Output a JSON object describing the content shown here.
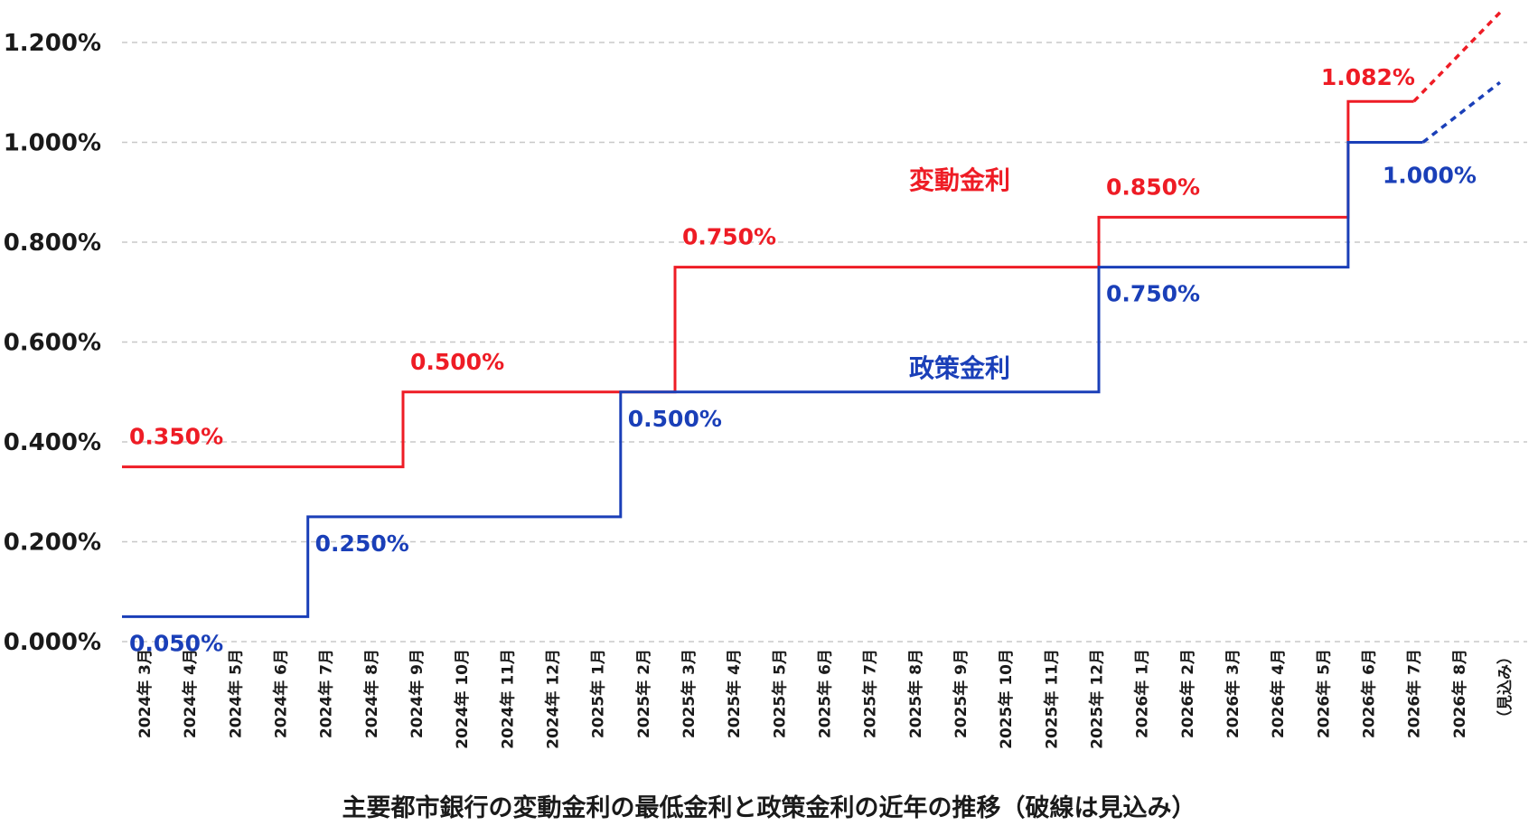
{
  "chart_data": {
    "type": "line",
    "title": "主要都市銀行の変動金利の最低金利と政策金利の近年の推移（破線は見込み）",
    "x": [
      "2024年 3月",
      "2024年 4月",
      "2024年 5月",
      "2024年 6月",
      "2024年 7月",
      "2024年 8月",
      "2024年 9月",
      "2024年 10月",
      "2024年 11月",
      "2024年 12月",
      "2025年 1月",
      "2025年 2月",
      "2025年 3月",
      "2025年 4月",
      "2025年 5月",
      "2025年 6月",
      "2025年 7月",
      "2025年 8月",
      "2025年 9月",
      "2025年 10月",
      "2025年 11月",
      "2025年 12月",
      "2026年 1月",
      "2026年 2月",
      "2026年 3月",
      "2026年 4月",
      "2026年 5月",
      "2026年 6月",
      "2026年 7月",
      "2026年 8月",
      "（見込み）"
    ],
    "yticks": [
      "0.000%",
      "0.200%",
      "0.400%",
      "0.600%",
      "0.800%",
      "1.000%",
      "1.200%"
    ],
    "ylim": [
      0,
      1.2
    ],
    "grid": true,
    "line_style": "step",
    "series": [
      {
        "name": "変動金利",
        "color": "#ee1c25",
        "steps": [
          {
            "start": 0,
            "end": 6.2,
            "value": 0.35,
            "label": "0.350%"
          },
          {
            "start": 6.2,
            "end": 12.2,
            "value": 0.5,
            "label": "0.500%"
          },
          {
            "start": 12.2,
            "end": 21.55,
            "value": 0.75,
            "label": "0.750%"
          },
          {
            "start": 21.55,
            "end": 27.05,
            "value": 0.85,
            "label": "0.850%"
          },
          {
            "start": 27.05,
            "end": 28.5,
            "value": 1.082,
            "label": "1.082%"
          }
        ],
        "projection": {
          "from": [
            28.5,
            1.082
          ],
          "to": [
            30.4,
            1.26
          ]
        }
      },
      {
        "name": "政策金利",
        "color": "#1a3fb8",
        "steps": [
          {
            "start": 0,
            "end": 4.1,
            "value": 0.05,
            "label": "0.050%"
          },
          {
            "start": 4.1,
            "end": 11.0,
            "value": 0.25,
            "label": "0.250%"
          },
          {
            "start": 11.0,
            "end": 21.55,
            "value": 0.5,
            "label": "0.500%"
          },
          {
            "start": 21.55,
            "end": 27.05,
            "value": 0.75,
            "label": "0.750%"
          },
          {
            "start": 27.05,
            "end": 28.7,
            "value": 1.0,
            "label": "1.000%"
          }
        ],
        "projection": {
          "from": [
            28.7,
            1.0
          ],
          "to": [
            30.4,
            1.12
          ]
        }
      }
    ]
  }
}
